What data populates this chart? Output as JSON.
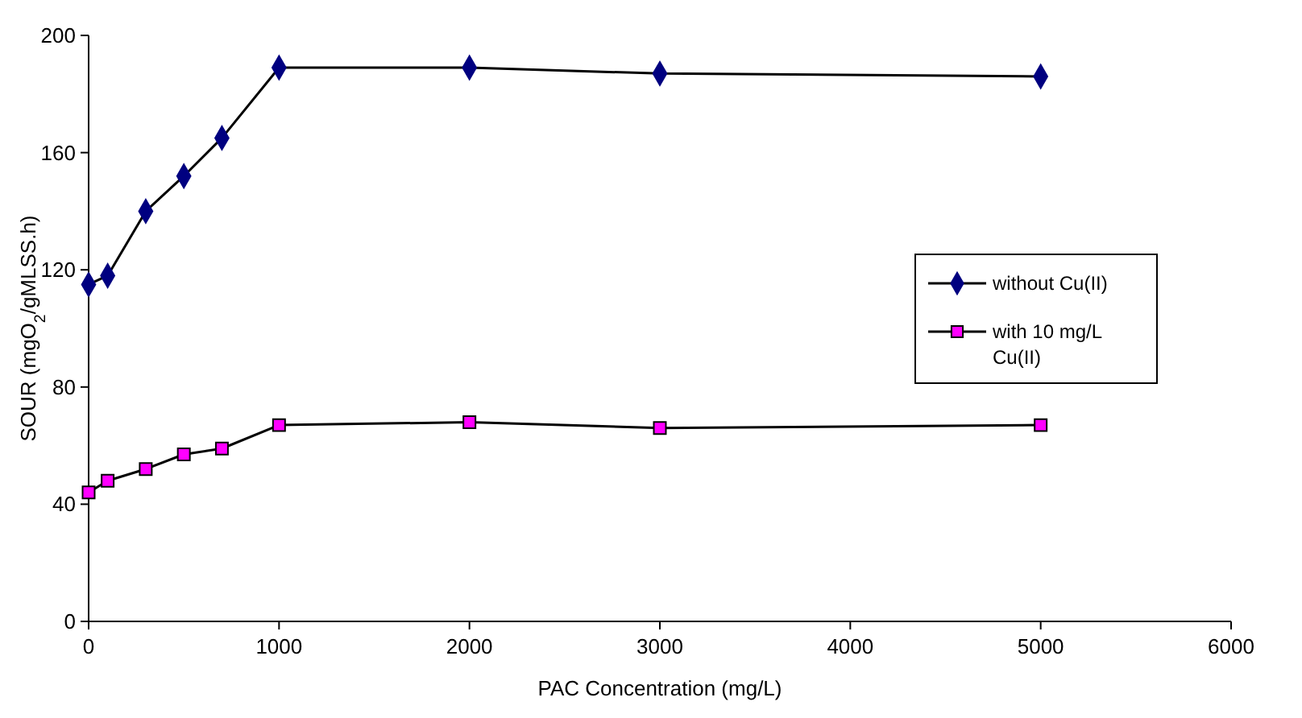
{
  "chart_data": {
    "type": "line",
    "xlabel": "PAC Concentration (mg/L)",
    "ylabel": "SOUR (mgO$_{2}$/gMLSS.h)",
    "x": [
      0,
      100,
      300,
      500,
      700,
      1000,
      2000,
      3000,
      5000
    ],
    "xlim": [
      0,
      6000
    ],
    "xticks": [
      0,
      1000,
      2000,
      3000,
      4000,
      5000,
      6000
    ],
    "ylim": [
      0,
      200
    ],
    "yticks": [
      0,
      40,
      80,
      120,
      160,
      200
    ],
    "grid": false,
    "legend": "right",
    "line_style": "solid",
    "series": [
      {
        "name": "without Cu(II)",
        "color": "#000080",
        "marker": "diamond",
        "values": [
          115,
          118,
          140,
          152,
          165,
          189,
          189,
          187,
          186
        ]
      },
      {
        "name": "with 10 mg/L Cu(II)",
        "color": "#ff00ff",
        "marker": "square",
        "values": [
          44,
          48,
          52,
          57,
          59,
          67,
          68,
          66,
          67
        ]
      }
    ]
  }
}
